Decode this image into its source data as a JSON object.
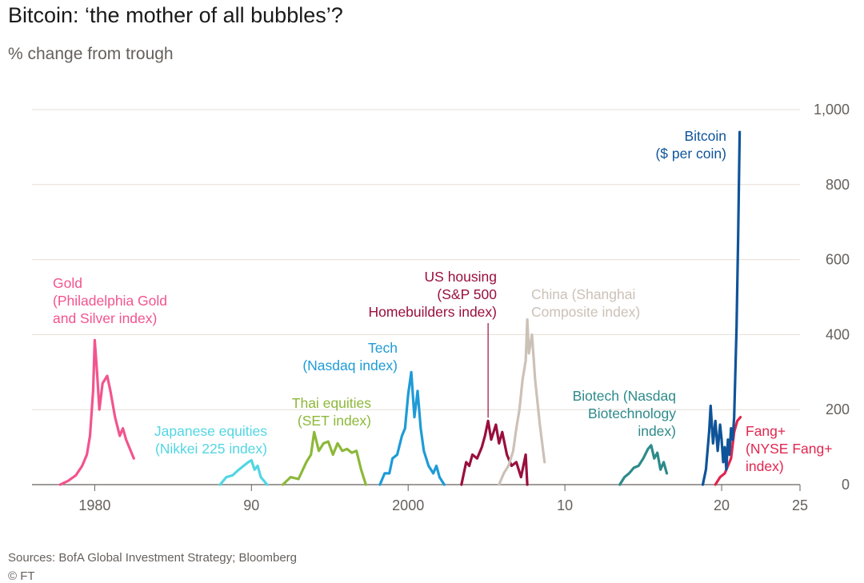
{
  "title": "Bitcoin: ‘the mother of all bubbles’?",
  "subtitle": "% change from trough",
  "source": "Sources: BofA Global Investment Strategy; Bloomberg",
  "credit": "© FT",
  "chart_data": {
    "type": "line",
    "title": "Bitcoin: ‘the mother of all bubbles’?",
    "ylabel": "% change from trough",
    "xlim": [
      1976,
      2025
    ],
    "ylim": [
      0,
      1000
    ],
    "grid": true,
    "y_ticks": [
      0,
      200,
      400,
      600,
      800,
      1000
    ],
    "y_tick_labels": [
      "0",
      "200",
      "400",
      "600",
      "800",
      "1,000"
    ],
    "x_ticks": [
      1980,
      1990,
      2000,
      2010,
      2020,
      2025
    ],
    "x_tick_labels": [
      "1980",
      "90",
      "2000",
      "10",
      "20",
      "25"
    ],
    "series": [
      {
        "key": "gold",
        "name": "Gold (Philadelphia Gold and Silver index)",
        "label_lines": [
          "Gold",
          "(Philadelphia Gold",
          "and Silver index)"
        ],
        "color": "#f2548e",
        "x": [
          1977.8,
          1978.3,
          1978.8,
          1979.2,
          1979.5,
          1979.7,
          1979.9,
          1980.0,
          1980.15,
          1980.3,
          1980.5,
          1980.8,
          1981.0,
          1981.3,
          1981.6,
          1981.8,
          1982.0,
          1982.3,
          1982.5
        ],
        "y": [
          0,
          10,
          25,
          50,
          80,
          130,
          250,
          385,
          300,
          200,
          270,
          290,
          250,
          180,
          130,
          150,
          120,
          90,
          70
        ]
      },
      {
        "key": "japan",
        "name": "Japanese equities (Nikkei 225 index)",
        "label_lines": [
          "Japanese equities",
          "(Nikkei 225 index)"
        ],
        "color": "#52d6e3",
        "x": [
          1988.0,
          1988.4,
          1988.8,
          1989.2,
          1989.5,
          1989.8,
          1990.0,
          1990.2,
          1990.4,
          1990.6,
          1990.8,
          1991.0
        ],
        "y": [
          0,
          20,
          25,
          40,
          50,
          60,
          65,
          40,
          50,
          20,
          10,
          0
        ]
      },
      {
        "key": "thai",
        "name": "Thai equities (SET index)",
        "label_lines": [
          "Thai equities",
          "(SET index)"
        ],
        "color": "#8db83a",
        "x": [
          1992.0,
          1992.5,
          1993.0,
          1993.5,
          1993.8,
          1994.0,
          1994.3,
          1994.6,
          1994.9,
          1995.2,
          1995.5,
          1995.8,
          1996.1,
          1996.4,
          1996.7,
          1997.0,
          1997.3
        ],
        "y": [
          0,
          20,
          15,
          60,
          80,
          140,
          90,
          110,
          115,
          80,
          110,
          90,
          95,
          85,
          90,
          40,
          0
        ]
      },
      {
        "key": "tech",
        "name": "Tech (Nasdaq index)",
        "label_lines": [
          "Tech",
          "(Nasdaq index)"
        ],
        "color": "#1e9bd7",
        "x": [
          1998.2,
          1998.5,
          1998.8,
          1999.0,
          1999.3,
          1999.6,
          1999.8,
          2000.0,
          2000.2,
          2000.4,
          2000.6,
          2000.8,
          2001.0,
          2001.3,
          2001.6,
          2001.8,
          2002.0,
          2002.3
        ],
        "y": [
          0,
          30,
          30,
          70,
          80,
          130,
          150,
          240,
          300,
          180,
          250,
          150,
          90,
          50,
          30,
          50,
          20,
          0
        ]
      },
      {
        "key": "housing",
        "name": "US housing (S&P 500 Homebuilders index)",
        "label_lines": [
          "US housing",
          "(S&P 500",
          "Homebuilders index)"
        ],
        "color": "#990f3d",
        "x": [
          2003.4,
          2003.7,
          2003.9,
          2004.1,
          2004.4,
          2004.7,
          2004.9,
          2005.1,
          2005.3,
          2005.6,
          2005.8,
          2006.0,
          2006.3,
          2006.6,
          2006.9,
          2007.2,
          2007.5,
          2007.6
        ],
        "y": [
          0,
          60,
          50,
          80,
          70,
          100,
          130,
          170,
          120,
          160,
          110,
          140,
          80,
          50,
          60,
          20,
          80,
          0
        ]
      },
      {
        "key": "china",
        "name": "China (Shanghai Composite index)",
        "label_lines": [
          "China (Shanghai",
          "Composite index)"
        ],
        "color": "#ccc1b7",
        "x": [
          2005.8,
          2006.1,
          2006.4,
          2006.7,
          2006.9,
          2007.1,
          2007.3,
          2007.5,
          2007.6,
          2007.7,
          2007.9,
          2008.1,
          2008.4,
          2008.7
        ],
        "y": [
          0,
          30,
          50,
          90,
          150,
          200,
          280,
          330,
          440,
          350,
          400,
          280,
          160,
          60
        ]
      },
      {
        "key": "biotech",
        "name": "Biotech (Nasdaq Biotechnology index)",
        "label_lines": [
          "Biotech (Nasdaq",
          "Biotechnology",
          "index)"
        ],
        "color": "#2e8a8a",
        "x": [
          2013.5,
          2013.8,
          2014.1,
          2014.4,
          2014.7,
          2015.0,
          2015.3,
          2015.5,
          2015.7,
          2015.9,
          2016.1,
          2016.3,
          2016.5
        ],
        "y": [
          0,
          20,
          30,
          45,
          50,
          70,
          95,
          105,
          70,
          85,
          40,
          60,
          30
        ]
      },
      {
        "key": "fang",
        "name": "Fang+ (NYSE Fang+ index)",
        "label_lines": [
          "Fang+",
          "(NYSE Fang+",
          "index)"
        ],
        "color": "#e0264f",
        "x": [
          2019.6,
          2019.9,
          2020.2,
          2020.4,
          2020.6,
          2020.8,
          2021.0,
          2021.2
        ],
        "y": [
          0,
          20,
          30,
          50,
          70,
          140,
          170,
          180
        ]
      },
      {
        "key": "bitcoin",
        "name": "Bitcoin ($ per coin)",
        "label_lines": [
          "Bitcoin",
          "($ per coin)"
        ],
        "color": "#0f5499",
        "x": [
          2018.8,
          2019.0,
          2019.2,
          2019.3,
          2019.45,
          2019.6,
          2019.75,
          2019.9,
          2020.0,
          2020.1,
          2020.2,
          2020.3,
          2020.4,
          2020.5,
          2020.6,
          2020.7,
          2020.8,
          2020.85,
          2020.95,
          2021.05,
          2021.15
        ],
        "y": [
          0,
          40,
          140,
          210,
          110,
          170,
          90,
          160,
          120,
          60,
          100,
          40,
          120,
          80,
          150,
          120,
          180,
          260,
          420,
          650,
          940
        ]
      }
    ]
  }
}
